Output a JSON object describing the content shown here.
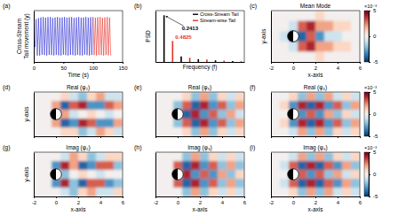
{
  "chart_data": [
    {
      "type": "line",
      "panel_label": "(a)",
      "xlabel": "Time (s)",
      "ylabel": [
        "Cross-Stream",
        "Tail movement (y)"
      ],
      "xlim": [
        0,
        150
      ],
      "xticks": [
        0,
        50,
        100,
        150
      ],
      "ylim": [
        -1.2,
        1.2
      ],
      "tick_labels": "x",
      "series": [
        {
          "color": "#2b2bd6",
          "x": [
            0,
            2,
            4,
            6,
            8,
            10,
            12,
            14,
            16,
            18,
            20,
            22,
            24,
            26,
            28,
            30,
            32,
            34,
            36,
            38,
            40,
            42,
            44,
            46,
            48,
            50,
            52,
            54,
            56,
            58,
            60,
            62,
            64,
            66,
            68,
            70,
            72,
            74,
            76,
            78,
            80,
            82,
            84,
            86,
            88,
            90,
            92,
            94,
            96,
            98,
            100
          ],
          "values": [
            0.2,
            -0.5,
            0.8,
            -0.9,
            0.85,
            -0.9,
            0.88,
            -0.86,
            0.9,
            -0.88,
            0.87,
            -0.9,
            0.89,
            -0.87,
            0.9,
            -0.88,
            0.86,
            -0.9,
            0.88,
            -0.87,
            0.9,
            -0.89,
            0.87,
            -0.9,
            0.88,
            -0.86,
            0.9,
            -0.88,
            0.87,
            -0.9,
            0.89,
            -0.87,
            0.9,
            -0.88,
            0.86,
            -0.9,
            0.88,
            -0.87,
            0.9,
            -0.89,
            0.87,
            -0.9,
            0.88,
            -0.86,
            0.9,
            -0.88,
            0.87,
            -0.9,
            0.89,
            -0.87,
            0.9
          ]
        },
        {
          "color": "#e8302a",
          "x": [
            100,
            102,
            104,
            106,
            108,
            110,
            112,
            114,
            116,
            118,
            120,
            122,
            124,
            126,
            128,
            130
          ],
          "values": [
            0.9,
            -0.88,
            0.87,
            -0.9,
            0.89,
            -0.87,
            0.9,
            -0.88,
            0.86,
            -0.9,
            0.88,
            -0.87,
            0.9,
            -0.89,
            0.87,
            -0.9
          ]
        }
      ]
    },
    {
      "type": "stem",
      "panel_label": "(b)",
      "xlabel": "Frequency (f)",
      "ylabel": "PSD",
      "xlim": [
        0,
        2.5
      ],
      "ylim": [
        0,
        1.1
      ],
      "tick_labels": false,
      "legend": "upper right",
      "series": [
        {
          "name": "Cross-Stream Tail",
          "color": "#000000",
          "x": [
            0.2413,
            0.7239,
            1.2065,
            1.6891,
            2.1717
          ],
          "values": [
            1.0,
            0.12,
            0.06,
            0.035,
            0.02
          ]
        },
        {
          "name": "Stream-wise Tail",
          "color": "#e8302a",
          "x": [
            0.4825,
            0.965,
            1.4475,
            1.93,
            2.4125
          ],
          "values": [
            0.45,
            0.09,
            0.05,
            0.03,
            0.015
          ]
        }
      ],
      "annotations": [
        "0.2413",
        "0.4825"
      ]
    },
    {
      "type": "heatmap",
      "panel_label": "(c)",
      "title": "Mean Mode",
      "xlabel": "x-axis",
      "ylabel": "y-axis",
      "xlim": [
        -2,
        6
      ],
      "xticks": [
        -2,
        0,
        2,
        4,
        6
      ],
      "ylim": [
        -2,
        2
      ],
      "tick_labels": "x",
      "zlim": [
        -5,
        5
      ],
      "colorbar": {
        "ticks": [
          -5,
          0,
          5
        ],
        "label": "×10⁻³"
      },
      "x": [
        -1.6,
        -0.8,
        0,
        0.8,
        1.6,
        2.4,
        3.2,
        4,
        4.8,
        5.6
      ],
      "y": [
        1.6,
        0.8,
        0,
        -0.8,
        -1.6
      ],
      "z": [
        [
          0,
          0,
          0,
          0,
          0,
          1,
          0,
          0,
          0,
          0
        ],
        [
          0,
          0,
          -1,
          3,
          4,
          2,
          2,
          1,
          1,
          0
        ],
        [
          0,
          -1,
          -3,
          -4,
          3,
          -3,
          -1,
          -1,
          0,
          0
        ],
        [
          0,
          0,
          -1,
          3,
          4,
          2,
          2,
          1,
          1,
          0
        ],
        [
          0,
          0,
          0,
          0,
          0,
          1,
          0,
          0,
          0,
          0
        ]
      ]
    },
    {
      "type": "heatmap",
      "panel_label": "(d)",
      "title": "Real (φ₂)",
      "ylabel": "y-axis",
      "xlim": [
        -2,
        6
      ],
      "xticks": [
        -2,
        0,
        2,
        4,
        6
      ],
      "ylim": [
        -2,
        2
      ],
      "tick_labels": false,
      "zlim": [
        -5,
        5
      ],
      "x": [
        -1.6,
        -0.8,
        0,
        0.8,
        1.6,
        2.4,
        3.2,
        4,
        4.8,
        5.6
      ],
      "y": [
        1.6,
        0.8,
        0,
        -0.8,
        -1.6
      ],
      "z": [
        [
          0,
          0,
          0,
          1,
          -1,
          -2,
          1,
          2,
          -1,
          -1
        ],
        [
          0,
          0,
          2,
          -4,
          3,
          4,
          -3,
          -3,
          3,
          2
        ],
        [
          0,
          0,
          -3,
          2,
          -1,
          0,
          1,
          0,
          -1,
          0
        ],
        [
          0,
          0,
          2,
          -4,
          -3,
          4,
          3,
          -3,
          -3,
          2
        ],
        [
          0,
          0,
          0,
          1,
          1,
          -2,
          -1,
          2,
          1,
          -1
        ]
      ]
    },
    {
      "type": "heatmap",
      "panel_label": "(e)",
      "title": "Real (φ₃)",
      "xlim": [
        -2,
        6
      ],
      "xticks": [
        -2,
        0,
        2,
        4,
        6
      ],
      "ylim": [
        -2,
        2
      ],
      "tick_labels": false,
      "zlim": [
        -5,
        5
      ],
      "x": [
        -1.6,
        -0.8,
        0,
        0.8,
        1.6,
        2.4,
        3.2,
        4,
        4.8,
        5.6
      ],
      "y": [
        1.6,
        0.8,
        0,
        -0.8,
        -1.6
      ],
      "z": [
        [
          0,
          0,
          0,
          1,
          -2,
          2,
          -2,
          1,
          -1,
          1
        ],
        [
          0,
          0,
          -2,
          3,
          -4,
          4,
          -3,
          3,
          -2,
          2
        ],
        [
          0,
          0,
          3,
          -4,
          4,
          -3,
          3,
          -2,
          2,
          -1
        ],
        [
          0,
          0,
          -2,
          3,
          -4,
          4,
          -3,
          3,
          -2,
          2
        ],
        [
          0,
          0,
          0,
          1,
          -2,
          2,
          -2,
          1,
          -1,
          1
        ]
      ]
    },
    {
      "type": "heatmap",
      "panel_label": "(f)",
      "title": "Real (φ₄)",
      "xlim": [
        -2,
        6
      ],
      "xticks": [
        -2,
        0,
        2,
        4,
        6
      ],
      "ylim": [
        -2,
        2
      ],
      "tick_labels": false,
      "zlim": [
        -5,
        5
      ],
      "colorbar": {
        "ticks": [
          -5,
          0,
          5
        ],
        "label": "×10⁻³"
      },
      "x": [
        -1.6,
        -0.8,
        0,
        0.8,
        1.6,
        2.4,
        3.2,
        4,
        4.8,
        5.6
      ],
      "y": [
        1.6,
        0.8,
        0,
        -0.8,
        -1.6
      ],
      "z": [
        [
          0,
          0,
          1,
          -2,
          2,
          -2,
          2,
          -1,
          1,
          -1
        ],
        [
          0,
          1,
          -3,
          4,
          -4,
          4,
          -3,
          3,
          -2,
          2
        ],
        [
          0,
          0,
          2,
          -3,
          3,
          -3,
          2,
          -2,
          1,
          -1
        ],
        [
          0,
          1,
          -3,
          4,
          -4,
          4,
          -3,
          3,
          -2,
          2
        ],
        [
          0,
          0,
          -1,
          2,
          -2,
          2,
          -2,
          1,
          -1,
          1
        ]
      ]
    },
    {
      "type": "heatmap",
      "panel_label": "(g)",
      "title": "Imag (φ₂)",
      "xlabel": "x-axis",
      "ylabel": "y-axis",
      "xlim": [
        -2,
        6
      ],
      "xticks": [
        -2,
        0,
        2,
        4,
        6
      ],
      "ylim": [
        -2,
        2
      ],
      "tick_labels": "x",
      "zlim": [
        -5,
        5
      ],
      "x": [
        -1.6,
        -0.8,
        0,
        0.8,
        1.6,
        2.4,
        3.2,
        4,
        4.8,
        5.6
      ],
      "y": [
        1.6,
        0.8,
        0,
        -0.8,
        -1.6
      ],
      "z": [
        [
          0,
          0,
          0,
          -1,
          2,
          1,
          -2,
          -1,
          1,
          1
        ],
        [
          0,
          0,
          -3,
          4,
          2,
          -4,
          -3,
          3,
          3,
          -2
        ],
        [
          0,
          0,
          1,
          -2,
          0,
          1,
          0,
          -1,
          0,
          0
        ],
        [
          0,
          0,
          -3,
          4,
          -2,
          -4,
          3,
          3,
          -3,
          -2
        ],
        [
          0,
          0,
          0,
          -1,
          -2,
          1,
          2,
          -1,
          -1,
          1
        ]
      ]
    },
    {
      "type": "heatmap",
      "panel_label": "(h)",
      "title": "Imag (φ₃)",
      "xlabel": "x-axis",
      "xlim": [
        -2,
        6
      ],
      "xticks": [
        -2,
        0,
        2,
        4,
        6
      ],
      "ylim": [
        -2,
        2
      ],
      "tick_labels": "x",
      "zlim": [
        -5,
        5
      ],
      "x": [
        -1.6,
        -0.8,
        0,
        0.8,
        1.6,
        2.4,
        3.2,
        4,
        4.8,
        5.6
      ],
      "y": [
        1.6,
        0.8,
        0,
        -0.8,
        -1.6
      ],
      "z": [
        [
          0,
          0,
          0,
          -2,
          2,
          -2,
          1,
          -1,
          1,
          -1
        ],
        [
          0,
          0,
          3,
          -4,
          4,
          -3,
          3,
          -2,
          2,
          -2
        ],
        [
          0,
          0,
          -2,
          4,
          -3,
          3,
          -3,
          2,
          -2,
          1
        ],
        [
          0,
          0,
          3,
          -4,
          4,
          -3,
          3,
          -2,
          2,
          -2
        ],
        [
          0,
          0,
          0,
          -2,
          2,
          -2,
          1,
          -1,
          1,
          -1
        ]
      ]
    },
    {
      "type": "heatmap",
      "panel_label": "(i)",
      "title": "Imag (φ₄)",
      "xlabel": "x-axis",
      "xlim": [
        -2,
        6
      ],
      "xticks": [
        -2,
        0,
        2,
        4,
        6
      ],
      "ylim": [
        -2,
        2
      ],
      "tick_labels": "x",
      "zlim": [
        -5,
        5
      ],
      "colorbar": {
        "ticks": [
          -5,
          0,
          5
        ],
        "label": "×10⁻³"
      },
      "x": [
        -1.6,
        -0.8,
        0,
        0.8,
        1.6,
        2.4,
        3.2,
        4,
        4.8,
        5.6
      ],
      "y": [
        1.6,
        0.8,
        0,
        -0.8,
        -1.6
      ],
      "z": [
        [
          0,
          0,
          -1,
          2,
          -2,
          2,
          -2,
          1,
          -1,
          1
        ],
        [
          0,
          -1,
          3,
          -4,
          4,
          -4,
          3,
          -3,
          2,
          -2
        ],
        [
          0,
          0,
          -2,
          3,
          -3,
          3,
          -2,
          2,
          -1,
          1
        ],
        [
          0,
          -1,
          3,
          -4,
          4,
          -4,
          3,
          -3,
          2,
          -2
        ],
        [
          0,
          0,
          1,
          -2,
          2,
          -2,
          2,
          -1,
          1,
          -1
        ]
      ]
    }
  ]
}
